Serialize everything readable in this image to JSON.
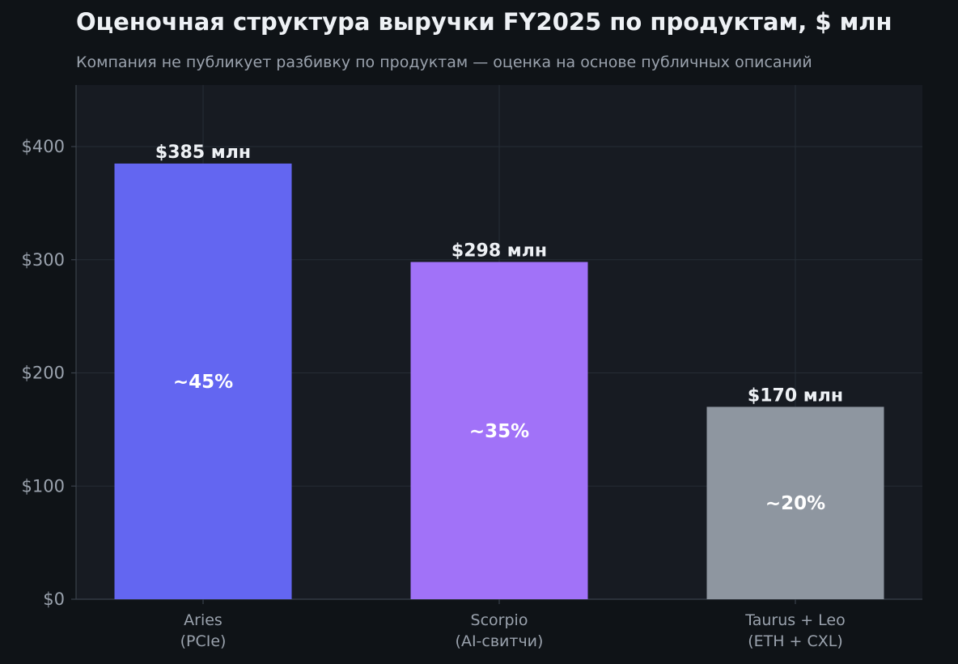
{
  "chart_data": {
    "type": "bar",
    "title": "Оценочная структура выручки FY2025 по продуктам, $ млн",
    "subtitle": "Компания не публикует разбивку по продуктам — оценка на основе публичных описаний",
    "categories": [
      [
        "Aries",
        "(PCIe)"
      ],
      [
        "Scorpio",
        "(AI-свитчи)"
      ],
      [
        "Taurus + Leo",
        "(ETH + CXL)"
      ]
    ],
    "values": [
      385,
      298,
      170
    ],
    "value_labels": [
      "$385 млн",
      "$298 млн",
      "$170 млн"
    ],
    "share_labels": [
      "~45%",
      "~35%",
      "~20%"
    ],
    "colors": [
      "#6366f1",
      "#a172f8",
      "#8e96a0"
    ],
    "ylim": [
      0,
      455
    ],
    "yticks": [
      0,
      100,
      200,
      300,
      400
    ],
    "ytick_labels": [
      "$0",
      "$100",
      "$200",
      "$300",
      "$400"
    ],
    "xlabel": "",
    "ylabel": "",
    "grid": true,
    "legend": "none"
  },
  "style": {
    "background": "#0f1317",
    "plot_background": "#171b22",
    "grid_color": "#262c35",
    "axis_color": "#3a414b"
  }
}
